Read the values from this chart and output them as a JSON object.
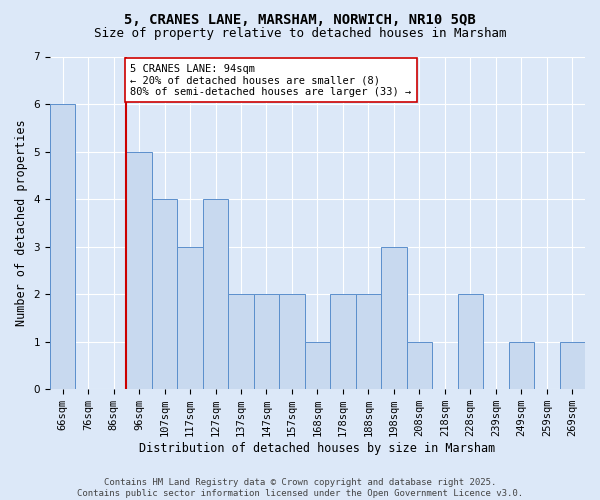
{
  "title1": "5, CRANES LANE, MARSHAM, NORWICH, NR10 5QB",
  "title2": "Size of property relative to detached houses in Marsham",
  "xlabel": "Distribution of detached houses by size in Marsham",
  "ylabel": "Number of detached properties",
  "categories": [
    "66sqm",
    "76sqm",
    "86sqm",
    "96sqm",
    "107sqm",
    "117sqm",
    "127sqm",
    "137sqm",
    "147sqm",
    "157sqm",
    "168sqm",
    "178sqm",
    "188sqm",
    "198sqm",
    "208sqm",
    "218sqm",
    "228sqm",
    "239sqm",
    "249sqm",
    "259sqm",
    "269sqm"
  ],
  "values": [
    6,
    0,
    0,
    5,
    4,
    3,
    4,
    2,
    2,
    2,
    1,
    2,
    2,
    3,
    1,
    0,
    2,
    0,
    1,
    0,
    1
  ],
  "bar_color": "#c8d9ef",
  "bar_edge_color": "#5b8fcc",
  "subject_line_index": 2.5,
  "subject_line_color": "#cc0000",
  "annotation_text": "5 CRANES LANE: 94sqm\n← 20% of detached houses are smaller (8)\n80% of semi-detached houses are larger (33) →",
  "annotation_box_color": "#ffffff",
  "annotation_box_edge": "#cc0000",
  "ylim": [
    0,
    7
  ],
  "yticks": [
    0,
    1,
    2,
    3,
    4,
    5,
    6,
    7
  ],
  "footer": "Contains HM Land Registry data © Crown copyright and database right 2025.\nContains public sector information licensed under the Open Government Licence v3.0.",
  "fig_bg_color": "#dce8f8",
  "plot_bg_color": "#dce8f8",
  "title_fontsize": 10,
  "subtitle_fontsize": 9,
  "tick_fontsize": 7.5,
  "ylabel_fontsize": 8.5,
  "xlabel_fontsize": 8.5,
  "footer_fontsize": 6.5,
  "annotation_fontsize": 7.5
}
